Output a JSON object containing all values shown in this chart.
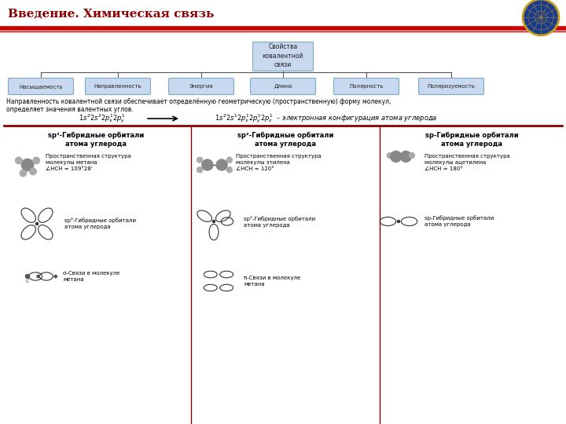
{
  "title": "Введение. Химическая связь",
  "title_color": "#8B0000",
  "bg_color": "#FFFFFF",
  "header_line_color": "#CC0000",
  "box_fill": "#C8D8EE",
  "box_edge": "#7aaac8",
  "root_label": "Свойства\nковалентной\nсвязи",
  "children": [
    "Насыщаемость",
    "Направленность",
    "Энергия",
    "Длина",
    "Полярность",
    "Поляризуемость"
  ],
  "direction_text1": "Направленность ковалентной связи обеспечивает определённую геометрическую (пространственную) форму молекул,",
  "direction_text2": "определяет значения валентных углов.",
  "col1_title": "sp³-Гибридные орбитали\nатома углерода",
  "col2_title": "sp²-Гибридные орбитали\nатома углерода",
  "col3_title": "sp-Гибридные орбитали\nатома углерода",
  "col1_struct": "Пространственная структура\nмолекулы метана\n∠HCH = 109°28'",
  "col2_struct": "Пространственная структура\nмолекулы этилена\n∠HCH = 120°",
  "col3_struct": "Пространственная структура\nмолекулы ацетилена\n∠HCH = 180°",
  "col1_orb": "sp³-Гибридные орбитали\nатома углерода",
  "col2_orb": "sp²-Гибридные орбитали\nатома углерода",
  "col3_orb": "sp-Гибридные орбитали\nатома углерода",
  "col1_bond": "σ-Связи в молекуле\nметана",
  "col2_bond": "π-Связи в молекуле\nметана",
  "sep_line_color": "#8B0000",
  "text_color": "#000000",
  "small_font": 5.5,
  "bold_font": 6.0,
  "title_font": 11
}
